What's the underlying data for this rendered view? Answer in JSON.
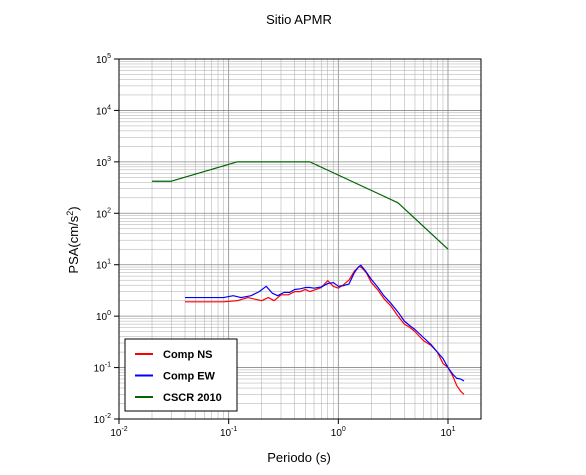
{
  "chart_data": {
    "type": "line",
    "title": "Sitio APMR",
    "xlabel": "Periodo (s)",
    "ylabel_base": "PSA(cm/s",
    "ylabel_sup": "2",
    "ylabel_end": ")",
    "xscale": "log",
    "yscale": "log",
    "xlim": [
      0.01,
      20
    ],
    "ylim": [
      0.01,
      100000
    ],
    "grid": true,
    "legend_position": "bottom-left",
    "x_ticks": [
      {
        "base": "10",
        "exp": "-2",
        "value": 0.01
      },
      {
        "base": "10",
        "exp": "-1",
        "value": 0.1
      },
      {
        "base": "10",
        "exp": "0",
        "value": 1
      },
      {
        "base": "10",
        "exp": "1",
        "value": 10
      }
    ],
    "y_ticks": [
      {
        "base": "10",
        "exp": "-2",
        "value": 0.01
      },
      {
        "base": "10",
        "exp": "-1",
        "value": 0.1
      },
      {
        "base": "10",
        "exp": "0",
        "value": 1
      },
      {
        "base": "10",
        "exp": "1",
        "value": 10
      },
      {
        "base": "10",
        "exp": "2",
        "value": 100
      },
      {
        "base": "10",
        "exp": "3",
        "value": 1000
      },
      {
        "base": "10",
        "exp": "4",
        "value": 10000
      },
      {
        "base": "10",
        "exp": "5",
        "value": 100000
      }
    ],
    "series": [
      {
        "name": "Comp NS",
        "color": "#ff0000",
        "x": [
          0.04,
          0.06,
          0.09,
          0.12,
          0.15,
          0.18,
          0.2,
          0.23,
          0.26,
          0.3,
          0.35,
          0.4,
          0.45,
          0.5,
          0.55,
          0.6,
          0.7,
          0.8,
          0.9,
          1.0,
          1.1,
          1.25,
          1.4,
          1.55,
          1.65,
          1.8,
          2.0,
          2.3,
          2.6,
          3.0,
          3.5,
          4.0,
          4.5,
          5.0,
          6.0,
          7.0,
          8.0,
          9.0,
          10.0,
          11.0,
          12.0,
          13.0,
          14.0
        ],
        "y": [
          1.9,
          1.9,
          1.9,
          2.0,
          2.3,
          2.1,
          2.0,
          2.3,
          2.0,
          2.6,
          2.6,
          3.0,
          3.0,
          3.3,
          3.0,
          3.2,
          3.6,
          4.9,
          3.8,
          3.5,
          4.0,
          5.0,
          7.5,
          9.3,
          8.6,
          7.0,
          4.5,
          3.2,
          2.2,
          1.6,
          1.0,
          0.7,
          0.6,
          0.5,
          0.33,
          0.27,
          0.2,
          0.12,
          0.1,
          0.07,
          0.045,
          0.035,
          0.03
        ]
      },
      {
        "name": "Comp EW",
        "color": "#0000ff",
        "x": [
          0.04,
          0.06,
          0.09,
          0.11,
          0.13,
          0.16,
          0.19,
          0.22,
          0.25,
          0.28,
          0.32,
          0.36,
          0.4,
          0.45,
          0.5,
          0.55,
          0.6,
          0.7,
          0.8,
          0.9,
          1.0,
          1.1,
          1.25,
          1.4,
          1.5,
          1.6,
          1.75,
          2.0,
          2.3,
          2.6,
          3.0,
          3.5,
          4.0,
          4.5,
          5.0,
          6.0,
          7.0,
          8.0,
          9.0,
          10.0,
          11.0,
          12.0,
          13.0,
          14.0
        ],
        "y": [
          2.3,
          2.3,
          2.3,
          2.5,
          2.3,
          2.5,
          3.0,
          3.8,
          2.8,
          2.5,
          2.9,
          2.9,
          3.3,
          3.4,
          3.6,
          3.6,
          3.5,
          3.7,
          4.3,
          4.5,
          3.8,
          3.9,
          4.2,
          7.0,
          8.6,
          9.8,
          7.8,
          5.2,
          3.6,
          2.5,
          1.8,
          1.2,
          0.8,
          0.65,
          0.55,
          0.38,
          0.28,
          0.2,
          0.15,
          0.1,
          0.075,
          0.062,
          0.06,
          0.055
        ]
      },
      {
        "name": "CSCR 2010",
        "color": "#006400",
        "x": [
          0.02,
          0.03,
          0.12,
          0.55,
          3.5,
          10.0
        ],
        "y": [
          420,
          420,
          1000,
          1000,
          160,
          20
        ]
      }
    ]
  }
}
